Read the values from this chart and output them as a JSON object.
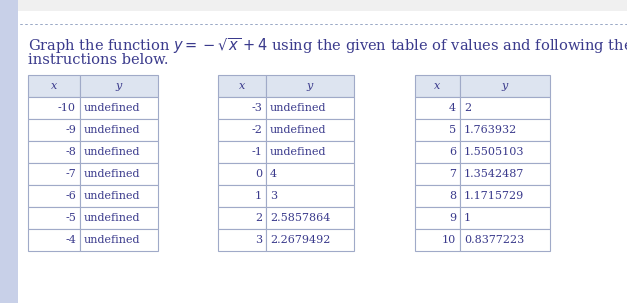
{
  "title_text1": "Graph the function $y = -\\sqrt{x}+ 4$ using the given table of values and following the",
  "title_text2": "instructions below.",
  "table1": {
    "headers": [
      "x",
      "y"
    ],
    "rows": [
      [
        "-10",
        "undefined"
      ],
      [
        "-9",
        "undefined"
      ],
      [
        "-8",
        "undefined"
      ],
      [
        "-7",
        "undefined"
      ],
      [
        "-6",
        "undefined"
      ],
      [
        "-5",
        "undefined"
      ],
      [
        "-4",
        "undefined"
      ]
    ]
  },
  "table2": {
    "headers": [
      "x",
      "y"
    ],
    "rows": [
      [
        "-3",
        "undefined"
      ],
      [
        "-2",
        "undefined"
      ],
      [
        "-1",
        "undefined"
      ],
      [
        "0",
        "4"
      ],
      [
        "1",
        "3"
      ],
      [
        "2",
        "2.5857864"
      ],
      [
        "3",
        "2.2679492"
      ]
    ]
  },
  "table3": {
    "headers": [
      "x",
      "y"
    ],
    "rows": [
      [
        "4",
        "2"
      ],
      [
        "5",
        "1.763932"
      ],
      [
        "6",
        "1.5505103"
      ],
      [
        "7",
        "1.3542487"
      ],
      [
        "8",
        "1.1715729"
      ],
      [
        "9",
        "1"
      ],
      [
        "10",
        "0.8377223"
      ]
    ]
  },
  "page_bg": "#f0f0f0",
  "content_bg": "#ffffff",
  "table_cell_bg": "#ffffff",
  "table_header_bg": "#dde4f0",
  "table_border_color": "#a0aac8",
  "text_color": "#3a3a8c",
  "title_fontsize": 10.5,
  "table_fontsize": 8,
  "dotted_line_color": "#8899bb",
  "top_stripe_color": "#c8d0e8"
}
